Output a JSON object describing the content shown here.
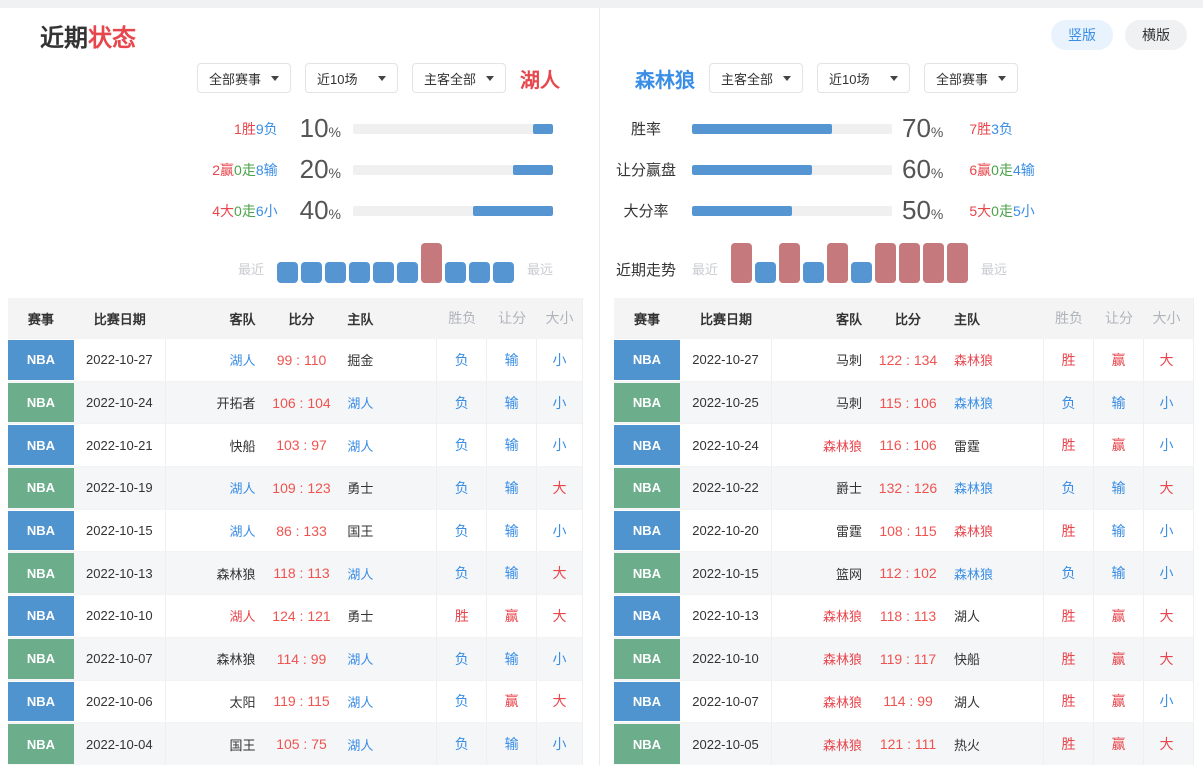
{
  "header": {
    "title_primary": "近期",
    "title_accent": "状态",
    "view_buttons": [
      {
        "label": "竖版",
        "active": true
      },
      {
        "label": "横版",
        "active": false
      }
    ]
  },
  "percent_symbol": "%",
  "center_labels": {
    "win_rate": "胜率",
    "handicap": "让分赢盘",
    "total": "大分率",
    "trend": "近期走势"
  },
  "trend_legend": {
    "near": "最近",
    "far": "最远"
  },
  "left": {
    "team": "湖人",
    "filters": [
      {
        "value": "全部赛事"
      },
      {
        "value": "近10场"
      },
      {
        "value": "主客全部"
      }
    ],
    "stats": [
      {
        "record": [
          [
            "1胜",
            "red"
          ],
          [
            "9负",
            "blue"
          ]
        ],
        "percent": "10"
      },
      {
        "record": [
          [
            "2赢",
            "red"
          ],
          [
            "0走",
            "green"
          ],
          [
            "8输",
            "blue"
          ]
        ],
        "percent": "20"
      },
      {
        "record": [
          [
            "4大",
            "red"
          ],
          [
            "0走",
            "green"
          ],
          [
            "6小",
            "blue"
          ]
        ],
        "percent": "40"
      }
    ],
    "trend": [
      "L",
      "L",
      "L",
      "L",
      "L",
      "L",
      "W",
      "L",
      "L",
      "L"
    ]
  },
  "right": {
    "team": "森林狼",
    "filters": [
      {
        "value": "主客全部"
      },
      {
        "value": "近10场"
      },
      {
        "value": "全部赛事"
      }
    ],
    "stats": [
      {
        "record": [
          [
            "7胜",
            "red"
          ],
          [
            "3负",
            "blue"
          ]
        ],
        "percent": "70"
      },
      {
        "record": [
          [
            "6赢",
            "red"
          ],
          [
            "0走",
            "green"
          ],
          [
            "4输",
            "blue"
          ]
        ],
        "percent": "60"
      },
      {
        "record": [
          [
            "5大",
            "red"
          ],
          [
            "0走",
            "green"
          ],
          [
            "5小",
            "blue"
          ]
        ],
        "percent": "50"
      }
    ],
    "trend": [
      "W",
      "L",
      "W",
      "L",
      "W",
      "L",
      "W",
      "W",
      "W",
      "W"
    ]
  },
  "table_headers": [
    "赛事",
    "比赛日期",
    "客队",
    "比分",
    "主队",
    "胜负",
    "让分",
    "大小"
  ],
  "left_table": {
    "rows": [
      {
        "league": "NBA",
        "date": "2022-10-27",
        "away": {
          "name": "湖人",
          "cls": "blue"
        },
        "score": "99 : 110",
        "home": {
          "name": "掘金",
          "cls": "dark"
        },
        "outcome": [
          "负",
          "blue"
        ],
        "spread": [
          "输",
          "blue"
        ],
        "total": [
          "小",
          "blue"
        ]
      },
      {
        "league": "NBA",
        "date": "2022-10-24",
        "away": {
          "name": "开拓者",
          "cls": "dark"
        },
        "score": "106 : 104",
        "home": {
          "name": "湖人",
          "cls": "blue"
        },
        "outcome": [
          "负",
          "blue"
        ],
        "spread": [
          "输",
          "blue"
        ],
        "total": [
          "小",
          "blue"
        ]
      },
      {
        "league": "NBA",
        "date": "2022-10-21",
        "away": {
          "name": "快船",
          "cls": "dark"
        },
        "score": "103 : 97",
        "home": {
          "name": "湖人",
          "cls": "blue"
        },
        "outcome": [
          "负",
          "blue"
        ],
        "spread": [
          "输",
          "blue"
        ],
        "total": [
          "小",
          "blue"
        ]
      },
      {
        "league": "NBA",
        "date": "2022-10-19",
        "away": {
          "name": "湖人",
          "cls": "blue"
        },
        "score": "109 : 123",
        "home": {
          "name": "勇士",
          "cls": "dark"
        },
        "outcome": [
          "负",
          "blue"
        ],
        "spread": [
          "输",
          "blue"
        ],
        "total": [
          "大",
          "red"
        ]
      },
      {
        "league": "NBA",
        "date": "2022-10-15",
        "away": {
          "name": "湖人",
          "cls": "blue"
        },
        "score": "86 : 133",
        "home": {
          "name": "国王",
          "cls": "dark"
        },
        "outcome": [
          "负",
          "blue"
        ],
        "spread": [
          "输",
          "blue"
        ],
        "total": [
          "小",
          "blue"
        ]
      },
      {
        "league": "NBA",
        "date": "2022-10-13",
        "away": {
          "name": "森林狼",
          "cls": "dark"
        },
        "score": "118 : 113",
        "home": {
          "name": "湖人",
          "cls": "blue"
        },
        "outcome": [
          "负",
          "blue"
        ],
        "spread": [
          "输",
          "blue"
        ],
        "total": [
          "大",
          "red"
        ]
      },
      {
        "league": "NBA",
        "date": "2022-10-10",
        "away": {
          "name": "湖人",
          "cls": "red"
        },
        "score": "124 : 121",
        "home": {
          "name": "勇士",
          "cls": "dark"
        },
        "outcome": [
          "胜",
          "red"
        ],
        "spread": [
          "赢",
          "red"
        ],
        "total": [
          "大",
          "red"
        ]
      },
      {
        "league": "NBA",
        "date": "2022-10-07",
        "away": {
          "name": "森林狼",
          "cls": "dark"
        },
        "score": "114 : 99",
        "home": {
          "name": "湖人",
          "cls": "blue"
        },
        "outcome": [
          "负",
          "blue"
        ],
        "spread": [
          "输",
          "blue"
        ],
        "total": [
          "小",
          "blue"
        ]
      },
      {
        "league": "NBA",
        "date": "2022-10-06",
        "away": {
          "name": "太阳",
          "cls": "dark"
        },
        "score": "119 : 115",
        "home": {
          "name": "湖人",
          "cls": "blue"
        },
        "outcome": [
          "负",
          "blue"
        ],
        "spread": [
          "赢",
          "red"
        ],
        "total": [
          "大",
          "red"
        ]
      },
      {
        "league": "NBA",
        "date": "2022-10-04",
        "away": {
          "name": "国王",
          "cls": "dark"
        },
        "score": "105 : 75",
        "home": {
          "name": "湖人",
          "cls": "blue"
        },
        "outcome": [
          "负",
          "blue"
        ],
        "spread": [
          "输",
          "blue"
        ],
        "total": [
          "小",
          "blue"
        ]
      }
    ]
  },
  "right_table": {
    "rows": [
      {
        "league": "NBA",
        "date": "2022-10-27",
        "away": {
          "name": "马刺",
          "cls": "dark"
        },
        "score": "122 : 134",
        "home": {
          "name": "森林狼",
          "cls": "red"
        },
        "outcome": [
          "胜",
          "red"
        ],
        "spread": [
          "赢",
          "red"
        ],
        "total": [
          "大",
          "red"
        ]
      },
      {
        "league": "NBA",
        "date": "2022-10-25",
        "away": {
          "name": "马刺",
          "cls": "dark"
        },
        "score": "115 : 106",
        "home": {
          "name": "森林狼",
          "cls": "blue"
        },
        "outcome": [
          "负",
          "blue"
        ],
        "spread": [
          "输",
          "blue"
        ],
        "total": [
          "小",
          "blue"
        ]
      },
      {
        "league": "NBA",
        "date": "2022-10-24",
        "away": {
          "name": "森林狼",
          "cls": "red"
        },
        "score": "116 : 106",
        "home": {
          "name": "雷霆",
          "cls": "dark"
        },
        "outcome": [
          "胜",
          "red"
        ],
        "spread": [
          "赢",
          "red"
        ],
        "total": [
          "小",
          "blue"
        ]
      },
      {
        "league": "NBA",
        "date": "2022-10-22",
        "away": {
          "name": "爵士",
          "cls": "dark"
        },
        "score": "132 : 126",
        "home": {
          "name": "森林狼",
          "cls": "blue"
        },
        "outcome": [
          "负",
          "blue"
        ],
        "spread": [
          "输",
          "blue"
        ],
        "total": [
          "大",
          "red"
        ]
      },
      {
        "league": "NBA",
        "date": "2022-10-20",
        "away": {
          "name": "雷霆",
          "cls": "dark"
        },
        "score": "108 : 115",
        "home": {
          "name": "森林狼",
          "cls": "red"
        },
        "outcome": [
          "胜",
          "red"
        ],
        "spread": [
          "输",
          "blue"
        ],
        "total": [
          "小",
          "blue"
        ]
      },
      {
        "league": "NBA",
        "date": "2022-10-15",
        "away": {
          "name": "篮网",
          "cls": "dark"
        },
        "score": "112 : 102",
        "home": {
          "name": "森林狼",
          "cls": "blue"
        },
        "outcome": [
          "负",
          "blue"
        ],
        "spread": [
          "输",
          "blue"
        ],
        "total": [
          "小",
          "blue"
        ]
      },
      {
        "league": "NBA",
        "date": "2022-10-13",
        "away": {
          "name": "森林狼",
          "cls": "red"
        },
        "score": "118 : 113",
        "home": {
          "name": "湖人",
          "cls": "dark"
        },
        "outcome": [
          "胜",
          "red"
        ],
        "spread": [
          "赢",
          "red"
        ],
        "total": [
          "大",
          "red"
        ]
      },
      {
        "league": "NBA",
        "date": "2022-10-10",
        "away": {
          "name": "森林狼",
          "cls": "red"
        },
        "score": "119 : 117",
        "home": {
          "name": "快船",
          "cls": "dark"
        },
        "outcome": [
          "胜",
          "red"
        ],
        "spread": [
          "赢",
          "red"
        ],
        "total": [
          "大",
          "red"
        ]
      },
      {
        "league": "NBA",
        "date": "2022-10-07",
        "away": {
          "name": "森林狼",
          "cls": "red"
        },
        "score": "114 : 99",
        "home": {
          "name": "湖人",
          "cls": "dark"
        },
        "outcome": [
          "胜",
          "red"
        ],
        "spread": [
          "赢",
          "red"
        ],
        "total": [
          "小",
          "blue"
        ]
      },
      {
        "league": "NBA",
        "date": "2022-10-05",
        "away": {
          "name": "森林狼",
          "cls": "red"
        },
        "score": "121 : 111",
        "home": {
          "name": "热火",
          "cls": "dark"
        },
        "outcome": [
          "胜",
          "red"
        ],
        "spread": [
          "赢",
          "red"
        ],
        "total": [
          "大",
          "red"
        ]
      }
    ]
  },
  "colors": {
    "accent_red": "#e8464d",
    "accent_blue": "#3a8ee6",
    "green": "#4aa34a",
    "score_red": "#ef5350",
    "badge_blue": "#4f93cf",
    "badge_green": "#6cae8c",
    "bar_fill": "#5596d2",
    "trend_win": "#c5797d",
    "trend_loss": "#5596d2"
  }
}
